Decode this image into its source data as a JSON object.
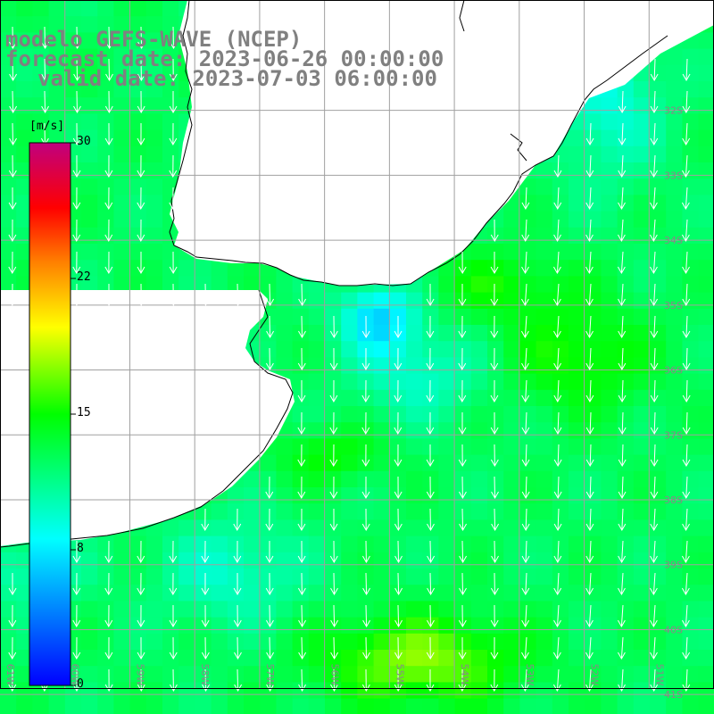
{
  "title": {
    "line1": "modelo GEFS-WAVE (NCEP)",
    "line2": "forecast date: 2023-06-26 00:00:00",
    "line3": "valid date: 2023-07-03 06:00:00"
  },
  "colorbar": {
    "unit": "[m/s]",
    "min": 0,
    "max": 30,
    "ticks": [
      "30",
      "22",
      "15",
      "8",
      "0"
    ],
    "colors": [
      "#0000ff",
      "#00ffff",
      "#00ff00",
      "#ffff00",
      "#ff8000",
      "#ff0000",
      "#c0007f"
    ]
  },
  "map": {
    "lon_labels": [
      "61W",
      "60W",
      "59W",
      "58W",
      "57W",
      "56W",
      "55W",
      "54W",
      "53W",
      "52W",
      "51W"
    ],
    "lat_labels": [
      "32S",
      "33S",
      "34S",
      "35S",
      "36S",
      "37S",
      "38S",
      "39S",
      "40S",
      "41S"
    ],
    "lon_range": [
      -61,
      -50
    ],
    "lat_range": [
      -41.3,
      -30.3
    ],
    "land_color": "#ffffff",
    "coast_color": "#000000",
    "grid_color": "#a0a0a0",
    "arrow_color": "#ffffff",
    "variable": "wind speed"
  }
}
